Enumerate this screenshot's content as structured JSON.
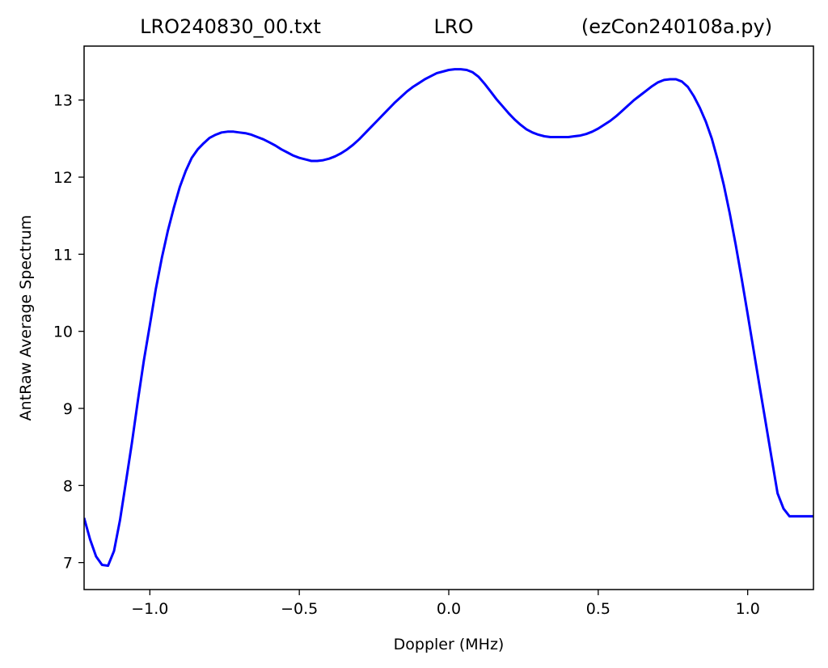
{
  "chart_data": {
    "type": "line",
    "title_left": "LRO240830_00.txt",
    "title_center": "LRO",
    "title_right": "(ezCon240108a.py)",
    "xlabel": "Doppler (MHz)",
    "ylabel": "AntRaw Average Spectrum",
    "xlim": [
      -1.22,
      1.22
    ],
    "ylim": [
      6.65,
      13.7
    ],
    "xticks": [
      -1.0,
      -0.5,
      0.0,
      0.5,
      1.0
    ],
    "xtick_labels": [
      "−1.0",
      "−0.5",
      "0.0",
      "0.5",
      "1.0"
    ],
    "yticks": [
      7,
      8,
      9,
      10,
      11,
      12,
      13
    ],
    "ytick_labels": [
      "7",
      "8",
      "9",
      "10",
      "11",
      "12",
      "13"
    ],
    "grid": false,
    "series": [
      {
        "color": "#0000ff",
        "x": [
          -1.22,
          -1.2,
          -1.18,
          -1.16,
          -1.14,
          -1.12,
          -1.1,
          -1.08,
          -1.06,
          -1.04,
          -1.02,
          -1.0,
          -0.98,
          -0.96,
          -0.94,
          -0.92,
          -0.9,
          -0.88,
          -0.86,
          -0.84,
          -0.82,
          -0.8,
          -0.78,
          -0.76,
          -0.74,
          -0.72,
          -0.7,
          -0.68,
          -0.66,
          -0.64,
          -0.62,
          -0.6,
          -0.58,
          -0.56,
          -0.54,
          -0.52,
          -0.5,
          -0.48,
          -0.46,
          -0.44,
          -0.42,
          -0.4,
          -0.38,
          -0.36,
          -0.34,
          -0.32,
          -0.3,
          -0.28,
          -0.26,
          -0.24,
          -0.22,
          -0.2,
          -0.18,
          -0.16,
          -0.14,
          -0.12,
          -0.1,
          -0.08,
          -0.06,
          -0.04,
          -0.02,
          0.0,
          0.02,
          0.04,
          0.06,
          0.08,
          0.1,
          0.12,
          0.14,
          0.16,
          0.18,
          0.2,
          0.22,
          0.24,
          0.26,
          0.28,
          0.3,
          0.32,
          0.34,
          0.36,
          0.38,
          0.4,
          0.42,
          0.44,
          0.46,
          0.48,
          0.5,
          0.52,
          0.54,
          0.56,
          0.58,
          0.6,
          0.62,
          0.64,
          0.66,
          0.68,
          0.7,
          0.72,
          0.74,
          0.76,
          0.78,
          0.8,
          0.82,
          0.84,
          0.86,
          0.88,
          0.9,
          0.92,
          0.94,
          0.96,
          0.98,
          1.0,
          1.02,
          1.04,
          1.06,
          1.08,
          1.1,
          1.12,
          1.14,
          1.16,
          1.18,
          1.2,
          1.22
        ],
        "y": [
          7.58,
          7.3,
          7.08,
          6.97,
          6.96,
          7.15,
          7.55,
          8.05,
          8.55,
          9.1,
          9.62,
          10.08,
          10.55,
          10.95,
          11.3,
          11.6,
          11.87,
          12.08,
          12.25,
          12.36,
          12.44,
          12.51,
          12.55,
          12.58,
          12.59,
          12.59,
          12.58,
          12.57,
          12.55,
          12.52,
          12.49,
          12.45,
          12.41,
          12.36,
          12.32,
          12.28,
          12.25,
          12.23,
          12.21,
          12.21,
          12.22,
          12.24,
          12.27,
          12.31,
          12.36,
          12.42,
          12.49,
          12.57,
          12.65,
          12.73,
          12.81,
          12.89,
          12.97,
          13.04,
          13.11,
          13.17,
          13.22,
          13.27,
          13.31,
          13.35,
          13.37,
          13.39,
          13.4,
          13.4,
          13.39,
          13.36,
          13.3,
          13.21,
          13.11,
          13.01,
          12.92,
          12.83,
          12.75,
          12.68,
          12.62,
          12.58,
          12.55,
          12.53,
          12.52,
          12.52,
          12.52,
          12.52,
          12.53,
          12.54,
          12.56,
          12.59,
          12.63,
          12.68,
          12.73,
          12.79,
          12.86,
          12.93,
          13.0,
          13.06,
          13.12,
          13.18,
          13.23,
          13.26,
          13.27,
          13.27,
          13.24,
          13.17,
          13.05,
          12.9,
          12.72,
          12.5,
          12.22,
          11.9,
          11.53,
          11.12,
          10.68,
          10.22,
          9.75,
          9.28,
          8.82,
          8.36,
          7.9,
          7.7,
          7.6,
          7.6,
          7.6,
          7.6,
          7.6
        ]
      }
    ]
  }
}
